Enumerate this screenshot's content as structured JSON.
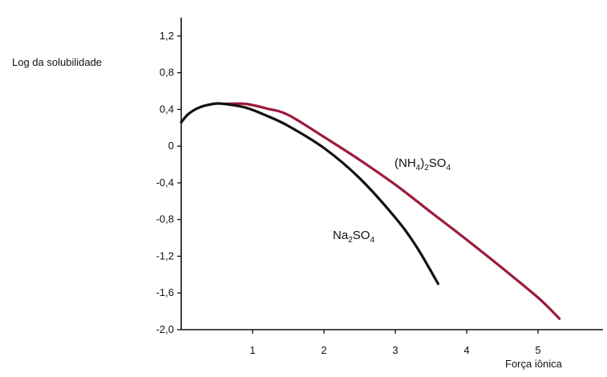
{
  "chart_data": {
    "type": "line",
    "ylabel": "Log da solubilidade",
    "xlabel": "Força iônica",
    "xlim": [
      0,
      6
    ],
    "ylim": [
      -2.0,
      1.4
    ],
    "x_ticks": [
      1,
      2,
      3,
      4,
      5
    ],
    "x_tick_labels": [
      "1",
      "2",
      "3",
      "4",
      "5"
    ],
    "y_ticks": [
      1.2,
      0.8,
      0.4,
      0,
      -0.4,
      -0.8,
      -1.2,
      -1.6,
      -2.0
    ],
    "y_tick_labels": [
      "1,2",
      "0,8",
      "0,4",
      "0",
      "-0,4",
      "-0,8",
      "-1,2",
      "-1,6",
      "-2,0"
    ],
    "grid": false,
    "series": [
      {
        "name": "(NH4)2SO4",
        "label_main": "(NH",
        "label_sub1": "4",
        "label_mid": ")",
        "label_sub2": "2",
        "label_end": "SO",
        "label_sub3": "4",
        "color": "#9b1b3a",
        "points": [
          [
            0.6,
            0.46
          ],
          [
            0.9,
            0.46
          ],
          [
            1.2,
            0.41
          ],
          [
            1.5,
            0.34
          ],
          [
            2.0,
            0.1
          ],
          [
            2.5,
            -0.15
          ],
          [
            3.0,
            -0.42
          ],
          [
            3.5,
            -0.72
          ],
          [
            4.0,
            -1.02
          ],
          [
            4.5,
            -1.33
          ],
          [
            5.0,
            -1.65
          ],
          [
            5.3,
            -1.88
          ]
        ]
      },
      {
        "name": "Na2SO4",
        "label_main": "Na",
        "label_sub1": "2",
        "label_end": "SO",
        "label_sub2": "4",
        "color": "#111111",
        "points": [
          [
            0,
            0.26
          ],
          [
            0.1,
            0.35
          ],
          [
            0.25,
            0.42
          ],
          [
            0.45,
            0.46
          ],
          [
            0.6,
            0.46
          ],
          [
            0.9,
            0.42
          ],
          [
            1.2,
            0.33
          ],
          [
            1.5,
            0.22
          ],
          [
            2.0,
            -0.02
          ],
          [
            2.5,
            -0.35
          ],
          [
            3.0,
            -0.78
          ],
          [
            3.3,
            -1.1
          ],
          [
            3.6,
            -1.5
          ]
        ]
      }
    ]
  }
}
